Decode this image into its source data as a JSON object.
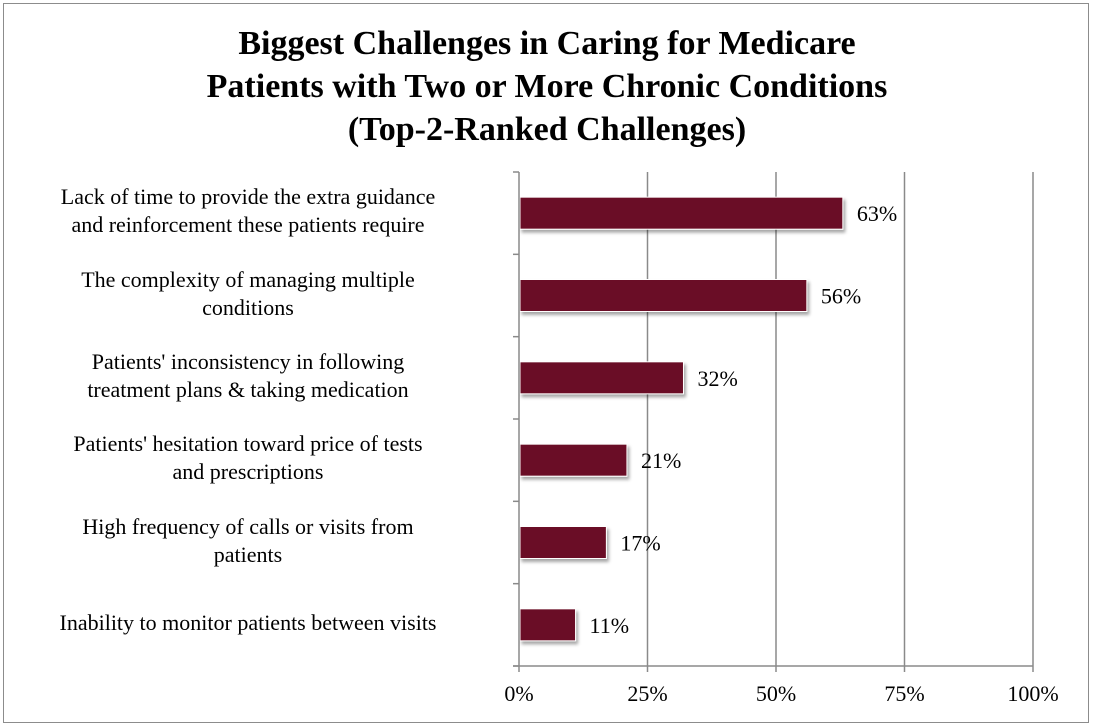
{
  "chart_data": {
    "type": "bar",
    "orientation": "horizontal",
    "title_lines": [
      "Biggest Challenges in Caring for Medicare",
      "Patients with Two or More Chronic Conditions",
      "(Top-2-Ranked Challenges)"
    ],
    "categories": [
      [
        "Lack of time to provide the extra guidance",
        "and reinforcement these patients require"
      ],
      [
        "The complexity of managing multiple",
        "conditions"
      ],
      [
        "Patients' inconsistency in following",
        "treatment plans & taking medication"
      ],
      [
        "Patients' hesitation toward price of tests",
        "and prescriptions"
      ],
      [
        "High frequency of calls or visits from",
        "patients"
      ],
      [
        "Inability to monitor patients between visits"
      ]
    ],
    "values": [
      63,
      56,
      32,
      21,
      17,
      11
    ],
    "data_labels": [
      "63%",
      "56%",
      "32%",
      "21%",
      "17%",
      "11%"
    ],
    "x_ticks": [
      0,
      25,
      50,
      75,
      100
    ],
    "x_tick_labels": [
      "0%",
      "25%",
      "50%",
      "75%",
      "100%"
    ],
    "xlim": [
      0,
      100
    ],
    "grid": "vertical",
    "legend": "none",
    "bar_color": "#6b0f25"
  }
}
